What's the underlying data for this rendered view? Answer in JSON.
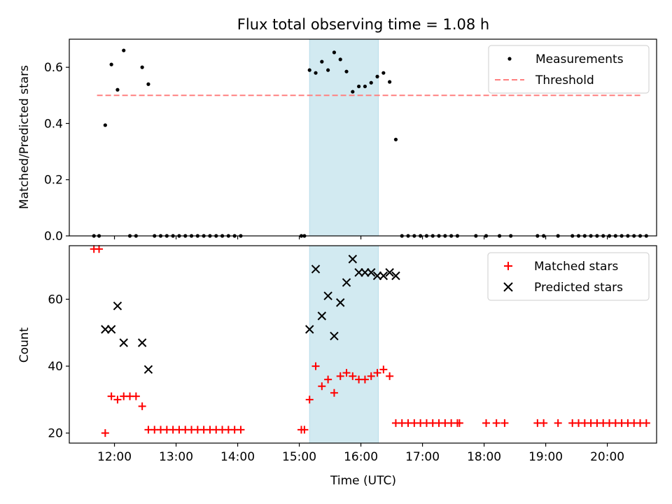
{
  "chart_data": {
    "type": "scatter",
    "title": "Flux total observing time = 1.08 h",
    "xlabel": "Time (UTC)",
    "x_ticks": [
      "12:00",
      "13:00",
      "14:00",
      "15:00",
      "16:00",
      "17:00",
      "18:00",
      "19:00",
      "20:00"
    ],
    "xlim": [
      "11:16",
      "20:48"
    ],
    "highlight_span": {
      "start": "15:10",
      "end": "16:17",
      "color": "#add8e6"
    },
    "panels": [
      {
        "ylabel": "Matched/Predicted stars",
        "ylim": [
          0,
          0.7
        ],
        "y_ticks": [
          "0.0",
          "0.2",
          "0.4",
          "0.6"
        ],
        "legend_position": "top-right",
        "series": [
          {
            "name": "Measurements",
            "marker": "dot",
            "color": "#000000",
            "points": [
              [
                "11:40",
                0
              ],
              [
                "11:45",
                0
              ],
              [
                "11:51",
                0.394
              ],
              [
                "11:57",
                0.61
              ],
              [
                "12:03",
                0.52
              ],
              [
                "12:09",
                0.66
              ],
              [
                "12:15",
                0
              ],
              [
                "12:21",
                0
              ],
              [
                "12:27",
                0.6
              ],
              [
                "12:33",
                0.54
              ],
              [
                "12:39",
                0
              ],
              [
                "12:45",
                0
              ],
              [
                "12:51",
                0
              ],
              [
                "12:57",
                0
              ],
              [
                "13:03",
                0
              ],
              [
                "13:09",
                0
              ],
              [
                "13:15",
                0
              ],
              [
                "13:21",
                0
              ],
              [
                "13:27",
                0
              ],
              [
                "13:33",
                0
              ],
              [
                "13:39",
                0
              ],
              [
                "13:45",
                0
              ],
              [
                "13:51",
                0
              ],
              [
                "13:57",
                0
              ],
              [
                "14:03",
                0
              ],
              [
                "15:02",
                0
              ],
              [
                "15:05",
                0
              ],
              [
                "15:10",
                0.59
              ],
              [
                "15:16",
                0.58
              ],
              [
                "15:22",
                0.62
              ],
              [
                "15:28",
                0.59
              ],
              [
                "15:34",
                0.653
              ],
              [
                "15:40",
                0.628
              ],
              [
                "15:46",
                0.585
              ],
              [
                "15:52",
                0.513
              ],
              [
                "15:58",
                0.532
              ],
              [
                "16:04",
                0.532
              ],
              [
                "16:10",
                0.545
              ],
              [
                "16:16",
                0.567
              ],
              [
                "16:22",
                0.58
              ],
              [
                "16:28",
                0.548
              ],
              [
                "16:34",
                0.343
              ],
              [
                "16:40",
                0
              ],
              [
                "16:46",
                0
              ],
              [
                "16:52",
                0
              ],
              [
                "16:58",
                0
              ],
              [
                "17:04",
                0
              ],
              [
                "17:10",
                0
              ],
              [
                "17:16",
                0
              ],
              [
                "17:22",
                0
              ],
              [
                "17:28",
                0
              ],
              [
                "17:34",
                0
              ],
              [
                "17:52",
                0
              ],
              [
                "18:02",
                0
              ],
              [
                "18:15",
                0
              ],
              [
                "18:26",
                0
              ],
              [
                "18:52",
                0
              ],
              [
                "18:58",
                0
              ],
              [
                "19:12",
                0
              ],
              [
                "19:26",
                0
              ],
              [
                "19:32",
                0
              ],
              [
                "19:38",
                0
              ],
              [
                "19:44",
                0
              ],
              [
                "19:50",
                0
              ],
              [
                "19:56",
                0
              ],
              [
                "20:02",
                0
              ],
              [
                "20:08",
                0
              ],
              [
                "20:14",
                0
              ],
              [
                "20:20",
                0
              ],
              [
                "20:26",
                0
              ],
              [
                "20:32",
                0
              ],
              [
                "20:38",
                0
              ]
            ]
          },
          {
            "name": "Threshold",
            "style": "dashed-line",
            "color": "#ff8080",
            "points": [
              [
                "11:43",
                0.5
              ],
              [
                "20:33",
                0.5
              ]
            ]
          }
        ]
      },
      {
        "ylabel": "Count",
        "ylim": [
          17,
          76
        ],
        "y_ticks": [
          "20",
          "40",
          "60"
        ],
        "legend_position": "top-right",
        "series": [
          {
            "name": "Matched stars",
            "marker": "plus",
            "color": "#ff0000",
            "points": [
              [
                "11:40",
                75
              ],
              [
                "11:45",
                75
              ],
              [
                "11:51",
                20
              ],
              [
                "11:57",
                31
              ],
              [
                "12:03",
                30
              ],
              [
                "12:09",
                31
              ],
              [
                "12:15",
                31
              ],
              [
                "12:21",
                31
              ],
              [
                "12:27",
                28
              ],
              [
                "12:33",
                21
              ],
              [
                "12:39",
                21
              ],
              [
                "12:45",
                21
              ],
              [
                "12:51",
                21
              ],
              [
                "12:57",
                21
              ],
              [
                "13:03",
                21
              ],
              [
                "13:09",
                21
              ],
              [
                "13:15",
                21
              ],
              [
                "13:21",
                21
              ],
              [
                "13:27",
                21
              ],
              [
                "13:33",
                21
              ],
              [
                "13:39",
                21
              ],
              [
                "13:45",
                21
              ],
              [
                "13:51",
                21
              ],
              [
                "13:57",
                21
              ],
              [
                "14:03",
                21
              ],
              [
                "15:02",
                21
              ],
              [
                "15:05",
                21
              ],
              [
                "15:10",
                30
              ],
              [
                "15:16",
                40
              ],
              [
                "15:22",
                34
              ],
              [
                "15:28",
                36
              ],
              [
                "15:34",
                32
              ],
              [
                "15:40",
                37
              ],
              [
                "15:46",
                38
              ],
              [
                "15:52",
                37
              ],
              [
                "15:58",
                36
              ],
              [
                "16:04",
                36
              ],
              [
                "16:10",
                37
              ],
              [
                "16:16",
                38
              ],
              [
                "16:22",
                39
              ],
              [
                "16:28",
                37
              ],
              [
                "16:34",
                23
              ],
              [
                "16:40",
                23
              ],
              [
                "16:46",
                23
              ],
              [
                "16:52",
                23
              ],
              [
                "16:58",
                23
              ],
              [
                "17:04",
                23
              ],
              [
                "17:10",
                23
              ],
              [
                "17:16",
                23
              ],
              [
                "17:22",
                23
              ],
              [
                "17:28",
                23
              ],
              [
                "17:34",
                23
              ],
              [
                "17:36",
                23
              ],
              [
                "18:02",
                23
              ],
              [
                "18:12",
                23
              ],
              [
                "18:20",
                23
              ],
              [
                "18:52",
                23
              ],
              [
                "18:58",
                23
              ],
              [
                "19:12",
                23
              ],
              [
                "19:26",
                23
              ],
              [
                "19:32",
                23
              ],
              [
                "19:38",
                23
              ],
              [
                "19:44",
                23
              ],
              [
                "19:50",
                23
              ],
              [
                "19:56",
                23
              ],
              [
                "20:02",
                23
              ],
              [
                "20:08",
                23
              ],
              [
                "20:14",
                23
              ],
              [
                "20:20",
                23
              ],
              [
                "20:26",
                23
              ],
              [
                "20:32",
                23
              ],
              [
                "20:38",
                23
              ]
            ]
          },
          {
            "name": "Predicted stars",
            "marker": "x",
            "color": "#000000",
            "points": [
              [
                "11:51",
                51
              ],
              [
                "11:57",
                51
              ],
              [
                "12:03",
                58
              ],
              [
                "12:09",
                47
              ],
              [
                "12:27",
                47
              ],
              [
                "12:33",
                39
              ],
              [
                "15:10",
                51
              ],
              [
                "15:16",
                69
              ],
              [
                "15:22",
                55
              ],
              [
                "15:28",
                61
              ],
              [
                "15:34",
                49
              ],
              [
                "15:40",
                59
              ],
              [
                "15:46",
                65
              ],
              [
                "15:52",
                72
              ],
              [
                "15:58",
                68
              ],
              [
                "16:04",
                68
              ],
              [
                "16:10",
                68
              ],
              [
                "16:16",
                67
              ],
              [
                "16:22",
                67
              ],
              [
                "16:28",
                68
              ],
              [
                "16:34",
                67
              ]
            ]
          }
        ]
      }
    ]
  }
}
